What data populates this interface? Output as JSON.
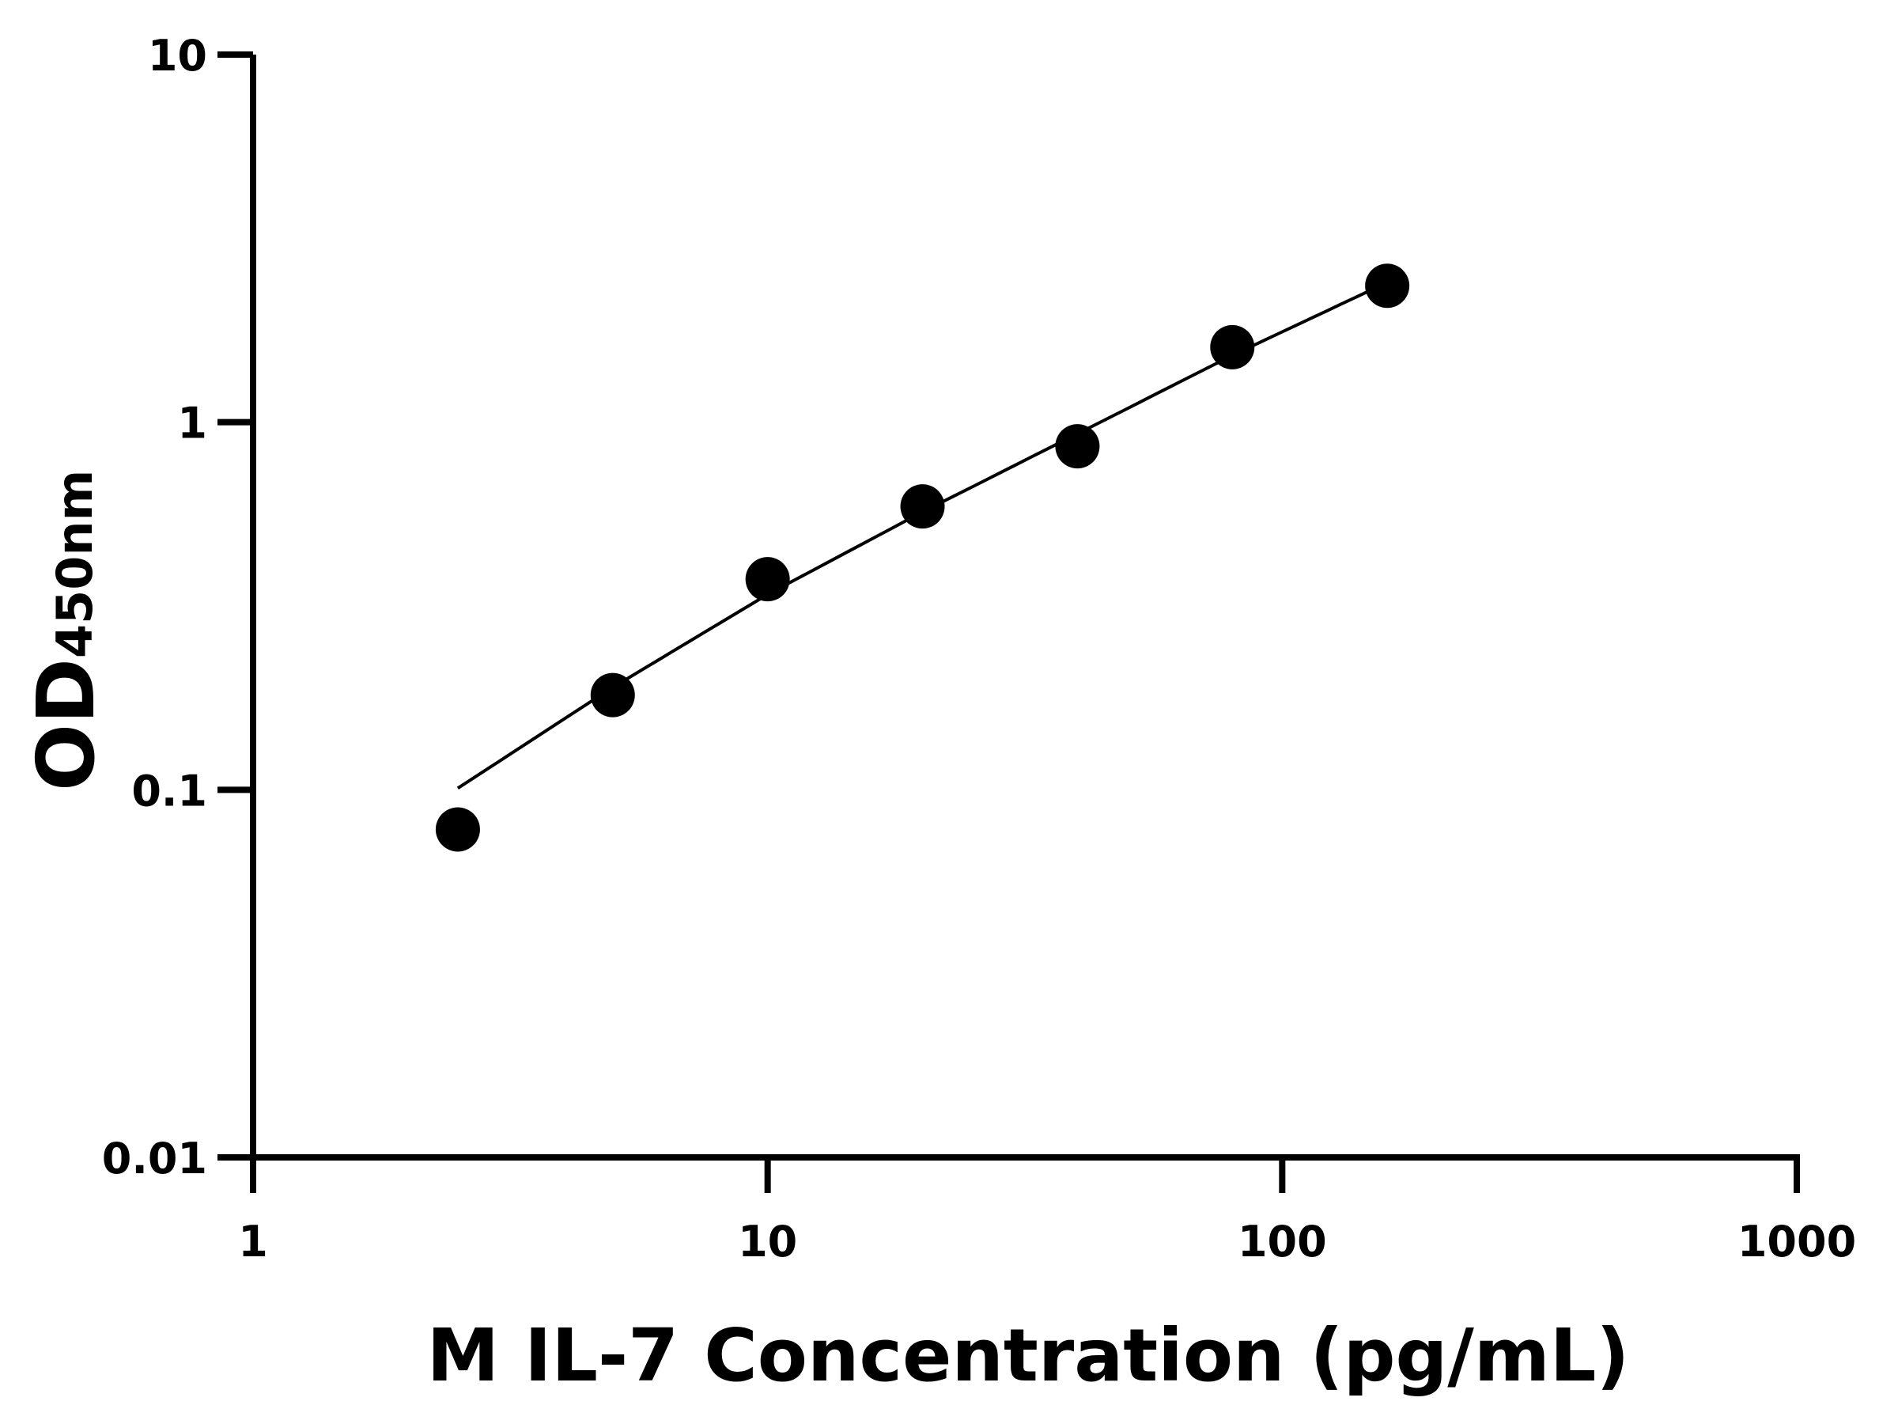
{
  "chart_data": {
    "type": "scatter",
    "title": "",
    "xlabel": "M IL-7 Concentration (pg/mL)",
    "ylabel": {
      "main": "OD",
      "subscript": "450nm"
    },
    "xscale": "log",
    "yscale": "log",
    "xlim": [
      1,
      1000
    ],
    "ylim": [
      0.01,
      10
    ],
    "xticks": [
      {
        "v": 1,
        "label": "1"
      },
      {
        "v": 10,
        "label": "10"
      },
      {
        "v": 100,
        "label": "100"
      },
      {
        "v": 1000,
        "label": "1000"
      }
    ],
    "yticks": [
      {
        "v": 0.01,
        "label": "0.01"
      },
      {
        "v": 0.1,
        "label": "0.1"
      },
      {
        "v": 1,
        "label": "1"
      },
      {
        "v": 10,
        "label": "10"
      }
    ],
    "grid": false,
    "points": [
      {
        "x": 2.5,
        "y": 0.078
      },
      {
        "x": 5,
        "y": 0.181
      },
      {
        "x": 10,
        "y": 0.374
      },
      {
        "x": 20,
        "y": 0.59
      },
      {
        "x": 40,
        "y": 0.86
      },
      {
        "x": 80,
        "y": 1.6
      },
      {
        "x": 160,
        "y": 2.35
      }
    ],
    "fit_curve": [
      {
        "x": 2.5,
        "y": 0.101
      },
      {
        "x": 5,
        "y": 0.19
      },
      {
        "x": 10,
        "y": 0.34
      },
      {
        "x": 20,
        "y": 0.57
      },
      {
        "x": 40,
        "y": 0.93
      },
      {
        "x": 80,
        "y": 1.52
      },
      {
        "x": 160,
        "y": 2.4
      }
    ],
    "colors": {
      "points": "#000000",
      "line": "#000000",
      "axes": "#000000"
    }
  }
}
